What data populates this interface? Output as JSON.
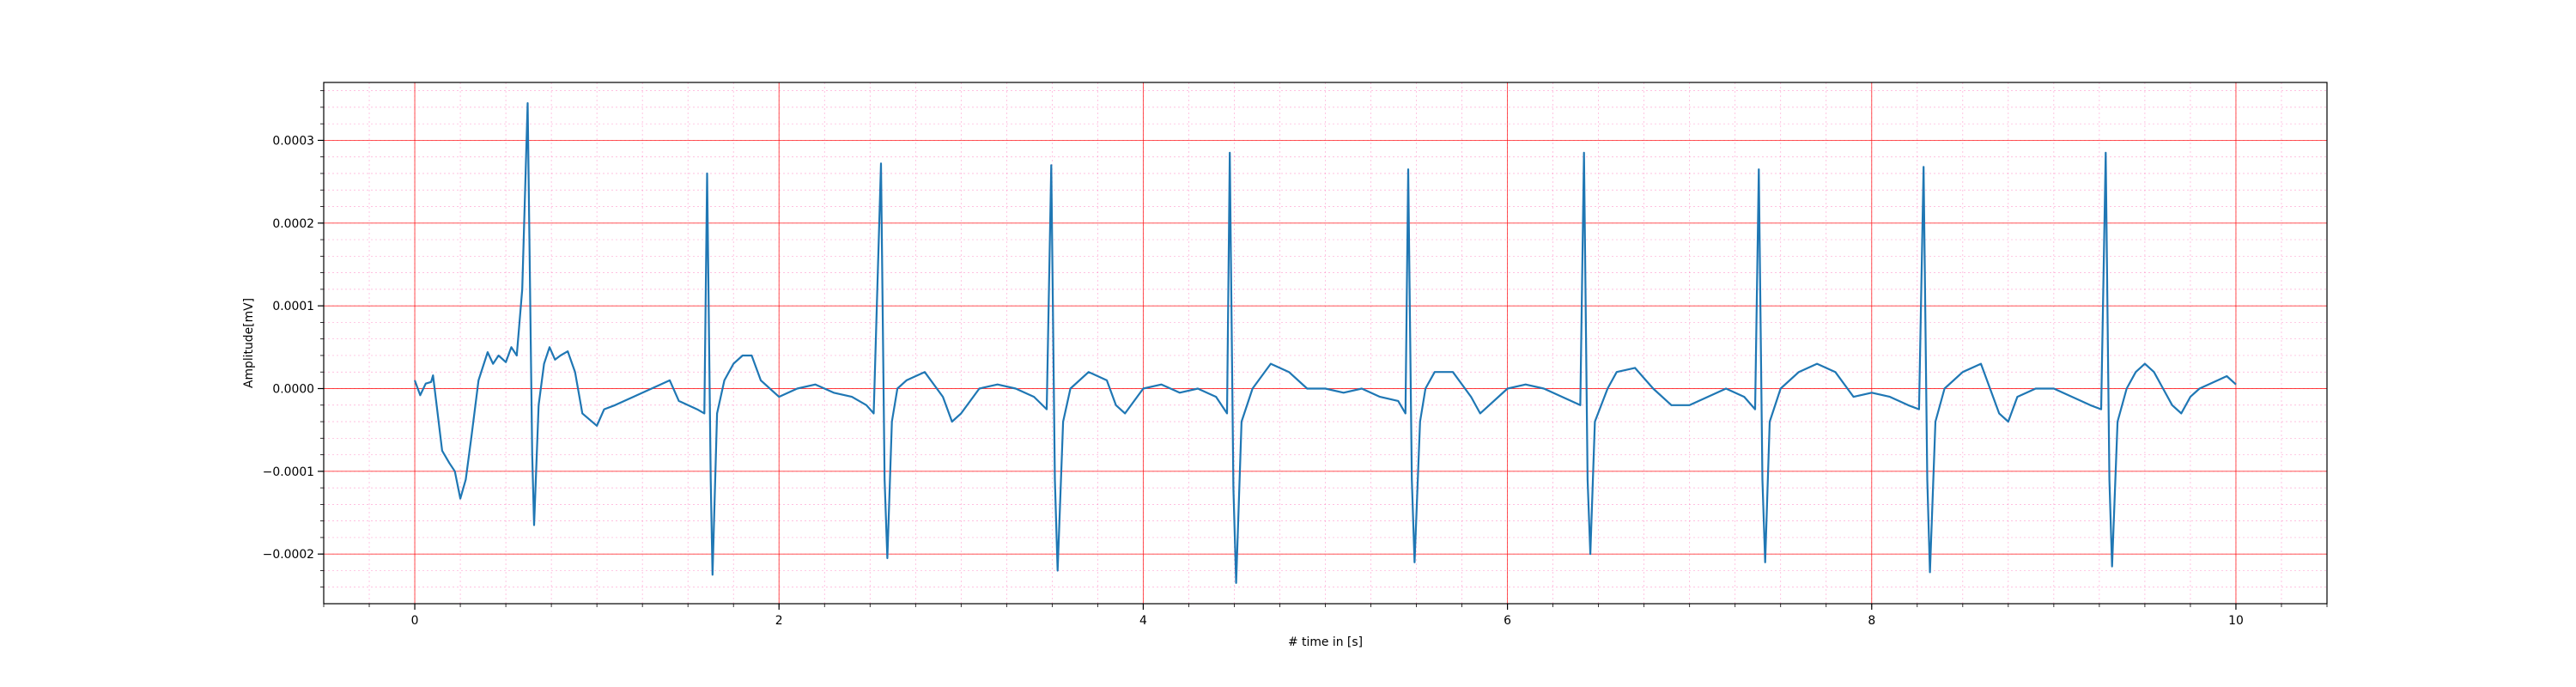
{
  "chart_data": {
    "type": "line",
    "title": "",
    "xlabel": "# time in [s]",
    "ylabel": "Amplitude[mV]",
    "xlim": [
      -0.5,
      10.5
    ],
    "ylim": [
      -0.00026,
      0.00037
    ],
    "x_ticks": [
      0,
      2,
      4,
      6,
      8,
      10
    ],
    "x_tick_labels": [
      "0",
      "2",
      "4",
      "6",
      "8",
      "10"
    ],
    "y_ticks": [
      -0.0002,
      -0.0001,
      0.0,
      0.0001,
      0.0002,
      0.0003
    ],
    "y_tick_labels": [
      "−0.0002",
      "−0.0001",
      "0.0000",
      "0.0001",
      "0.0002",
      "0.0003"
    ],
    "grid": {
      "major": true,
      "minor": true,
      "major_color": "#ff0000",
      "minor_color": "#ff69b4"
    },
    "series": [
      {
        "color": "#1f77b4",
        "points": [
          [
            0.0,
            1e-05
          ],
          [
            0.03,
            -8e-06
          ],
          [
            0.06,
            6e-06
          ],
          [
            0.09,
            8e-06
          ],
          [
            0.1,
            1.6e-05
          ],
          [
            0.12,
            -2e-05
          ],
          [
            0.15,
            -7.5e-05
          ],
          [
            0.19,
            -9e-05
          ],
          [
            0.22,
            -0.0001
          ],
          [
            0.25,
            -0.000133
          ],
          [
            0.28,
            -0.00011
          ],
          [
            0.31,
            -6e-05
          ],
          [
            0.35,
            1e-05
          ],
          [
            0.4,
            4.4e-05
          ],
          [
            0.43,
            3e-05
          ],
          [
            0.46,
            4e-05
          ],
          [
            0.5,
            3.2e-05
          ],
          [
            0.53,
            5e-05
          ],
          [
            0.56,
            4e-05
          ],
          [
            0.59,
            0.00012
          ],
          [
            0.62,
            0.000345
          ],
          [
            0.645,
            -8e-05
          ],
          [
            0.655,
            -0.000165
          ],
          [
            0.68,
            -2e-05
          ],
          [
            0.71,
            3e-05
          ],
          [
            0.74,
            5e-05
          ],
          [
            0.77,
            3.5e-05
          ],
          [
            0.8,
            4e-05
          ],
          [
            0.84,
            4.5e-05
          ],
          [
            0.88,
            2e-05
          ],
          [
            0.92,
            -3e-05
          ],
          [
            1.0,
            -4.5e-05
          ],
          [
            1.04,
            -2.5e-05
          ],
          [
            1.1,
            -2e-05
          ],
          [
            1.2,
            -1e-05
          ],
          [
            1.3,
            0.0
          ],
          [
            1.4,
            1e-05
          ],
          [
            1.45,
            -1.5e-05
          ],
          [
            1.5,
            -2e-05
          ],
          [
            1.55,
            -2.5e-05
          ],
          [
            1.59,
            -3e-05
          ],
          [
            1.605,
            0.00026
          ],
          [
            1.625,
            -0.00011
          ],
          [
            1.635,
            -0.000225
          ],
          [
            1.66,
            -3e-05
          ],
          [
            1.7,
            1e-05
          ],
          [
            1.75,
            3e-05
          ],
          [
            1.8,
            4e-05
          ],
          [
            1.85,
            4e-05
          ],
          [
            1.9,
            1e-05
          ],
          [
            2.0,
            -1e-05
          ],
          [
            2.1,
            0.0
          ],
          [
            2.2,
            5e-06
          ],
          [
            2.3,
            -5e-06
          ],
          [
            2.4,
            -1e-05
          ],
          [
            2.48,
            -2e-05
          ],
          [
            2.52,
            -3e-05
          ],
          [
            2.56,
            0.000272
          ],
          [
            2.58,
            -0.00011
          ],
          [
            2.595,
            -0.000205
          ],
          [
            2.62,
            -4e-05
          ],
          [
            2.65,
            0.0
          ],
          [
            2.7,
            1e-05
          ],
          [
            2.8,
            2e-05
          ],
          [
            2.9,
            -1e-05
          ],
          [
            2.95,
            -4e-05
          ],
          [
            3.0,
            -3e-05
          ],
          [
            3.1,
            0.0
          ],
          [
            3.2,
            5e-06
          ],
          [
            3.3,
            0.0
          ],
          [
            3.4,
            -1e-05
          ],
          [
            3.47,
            -2.5e-05
          ],
          [
            3.495,
            0.00027
          ],
          [
            3.515,
            -0.00011
          ],
          [
            3.53,
            -0.00022
          ],
          [
            3.56,
            -4e-05
          ],
          [
            3.6,
            0.0
          ],
          [
            3.7,
            2e-05
          ],
          [
            3.8,
            1e-05
          ],
          [
            3.85,
            -2e-05
          ],
          [
            3.9,
            -3e-05
          ],
          [
            4.0,
            0.0
          ],
          [
            4.1,
            5e-06
          ],
          [
            4.2,
            -5e-06
          ],
          [
            4.3,
            0.0
          ],
          [
            4.4,
            -1e-05
          ],
          [
            4.46,
            -3e-05
          ],
          [
            4.475,
            0.000285
          ],
          [
            4.495,
            -0.00012
          ],
          [
            4.51,
            -0.000235
          ],
          [
            4.54,
            -4e-05
          ],
          [
            4.6,
            0.0
          ],
          [
            4.7,
            3e-05
          ],
          [
            4.8,
            2e-05
          ],
          [
            4.9,
            0.0
          ],
          [
            5.0,
            0.0
          ],
          [
            5.1,
            -5e-06
          ],
          [
            5.2,
            0.0
          ],
          [
            5.3,
            -1e-05
          ],
          [
            5.4,
            -1.5e-05
          ],
          [
            5.44,
            -3e-05
          ],
          [
            5.455,
            0.000265
          ],
          [
            5.475,
            -0.00011
          ],
          [
            5.49,
            -0.00021
          ],
          [
            5.52,
            -4e-05
          ],
          [
            5.55,
            0.0
          ],
          [
            5.6,
            2e-05
          ],
          [
            5.7,
            2e-05
          ],
          [
            5.8,
            -1e-05
          ],
          [
            5.85,
            -3e-05
          ],
          [
            5.9,
            -2e-05
          ],
          [
            6.0,
            0.0
          ],
          [
            6.1,
            5e-06
          ],
          [
            6.2,
            0.0
          ],
          [
            6.3,
            -1e-05
          ],
          [
            6.4,
            -2e-05
          ],
          [
            6.42,
            0.000285
          ],
          [
            6.44,
            -0.00011
          ],
          [
            6.455,
            -0.0002
          ],
          [
            6.48,
            -4e-05
          ],
          [
            6.55,
            0.0
          ],
          [
            6.6,
            2e-05
          ],
          [
            6.7,
            2.5e-05
          ],
          [
            6.8,
            0.0
          ],
          [
            6.9,
            -2e-05
          ],
          [
            7.0,
            -2e-05
          ],
          [
            7.1,
            -1e-05
          ],
          [
            7.2,
            0.0
          ],
          [
            7.3,
            -1e-05
          ],
          [
            7.36,
            -2.5e-05
          ],
          [
            7.38,
            0.000265
          ],
          [
            7.4,
            -0.00011
          ],
          [
            7.415,
            -0.00021
          ],
          [
            7.44,
            -4e-05
          ],
          [
            7.5,
            0.0
          ],
          [
            7.6,
            2e-05
          ],
          [
            7.7,
            3e-05
          ],
          [
            7.8,
            2e-05
          ],
          [
            7.9,
            -1e-05
          ],
          [
            8.0,
            -5e-06
          ],
          [
            8.1,
            -1e-05
          ],
          [
            8.2,
            -2e-05
          ],
          [
            8.26,
            -2.5e-05
          ],
          [
            8.285,
            0.000268
          ],
          [
            8.305,
            -0.00011
          ],
          [
            8.32,
            -0.000222
          ],
          [
            8.35,
            -4e-05
          ],
          [
            8.4,
            0.0
          ],
          [
            8.5,
            2e-05
          ],
          [
            8.6,
            3e-05
          ],
          [
            8.65,
            0.0
          ],
          [
            8.7,
            -3e-05
          ],
          [
            8.75,
            -4e-05
          ],
          [
            8.8,
            -1e-05
          ],
          [
            8.9,
            0.0
          ],
          [
            9.0,
            0.0
          ],
          [
            9.1,
            -1e-05
          ],
          [
            9.2,
            -2e-05
          ],
          [
            9.26,
            -2.5e-05
          ],
          [
            9.285,
            0.000285
          ],
          [
            9.305,
            -0.00011
          ],
          [
            9.32,
            -0.000215
          ],
          [
            9.35,
            -4e-05
          ],
          [
            9.4,
            0.0
          ],
          [
            9.45,
            2e-05
          ],
          [
            9.5,
            3e-05
          ],
          [
            9.55,
            2e-05
          ],
          [
            9.6,
            0.0
          ],
          [
            9.65,
            -2e-05
          ],
          [
            9.7,
            -3e-05
          ],
          [
            9.75,
            -1e-05
          ],
          [
            9.8,
            0.0
          ],
          [
            9.9,
            1e-05
          ],
          [
            9.95,
            1.5e-05
          ],
          [
            10.0,
            5e-06
          ]
        ]
      }
    ]
  }
}
